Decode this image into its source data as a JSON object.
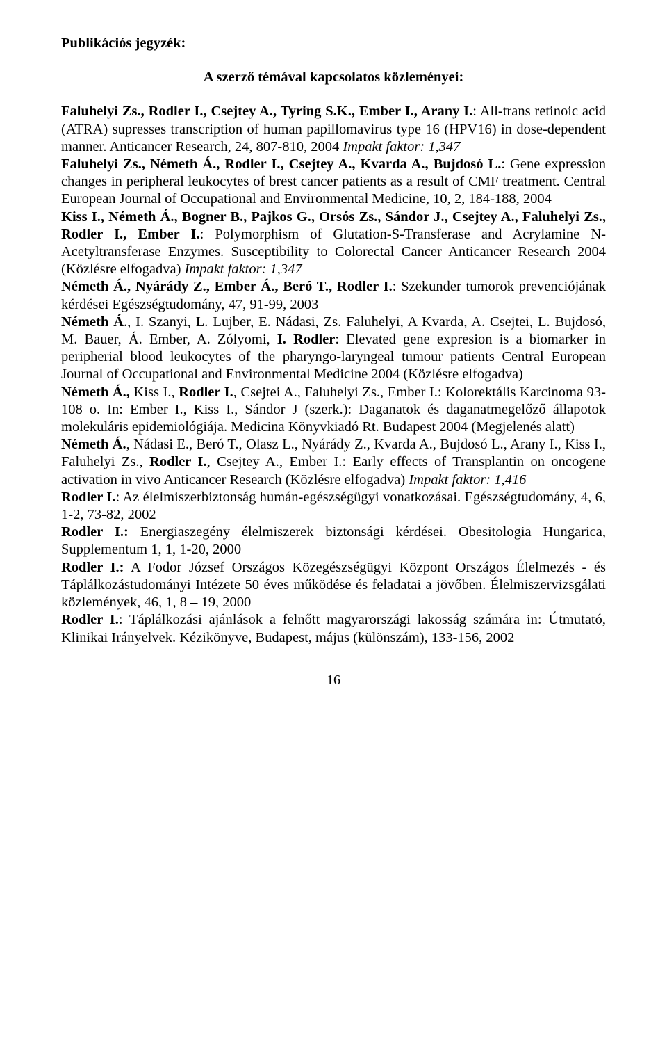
{
  "heading": "Publikációs jegyzék:",
  "subheading": "A szerző témával kapcsolatos közleményei:",
  "text": {
    "t1": "Faluhelyi Zs., Rodler I., Csejtey A., Tyring S.K., Ember I., Arany I.",
    "t2": ": All-trans retinoic acid (ATRA) supresses transcription of human papillomavirus type 16 (HPV16) in dose-dependent manner. Anticancer Research, 24, 807-810, 2004 ",
    "t3": "Impakt faktor: 1,347",
    "t4": "Faluhelyi Zs., Németh Á., Rodler I., Csejtey A., Kvarda A., Bujdosó L.",
    "t5": ": Gene expression changes in peripheral leukocytes of brest cancer patients as a result of CMF treatment. Central European Journal of Occupational and Environmental Medicine, 10, 2, 184-188, 2004",
    "t6": "Kiss I., Németh Á., Bogner B., Pajkos G., Orsós Zs., Sándor J., Csejtey A., Faluhelyi Zs., Rodler I., Ember I.",
    "t7": ": Polymorphism of Glutation-S-Transferase and Acrylamine N-Acetyltransferase Enzymes. Susceptibility to Colorectal Cancer Anticancer Research 2004 (Közlésre elfogadva) ",
    "t8": "Impakt faktor: 1,347",
    "t9": "Németh Á., Nyárády Z., Ember Á., Beró T., Rodler I.",
    "t10": ": Szekunder tumorok prevenciójának kérdései Egészségtudomány, 47, 91-99, 2003",
    "t11": "Németh Á",
    "t12": "., I. Szanyi, L. Lujber, E. Nádasi, Zs. Faluhelyi, A Kvarda, A. Csejtei, L. Bujdosó, M. Bauer, Á. Ember, A. Zólyomi, ",
    "t13": "I. Rodler",
    "t14": ": Elevated gene expresion is a biomarker in peripherial blood leukocytes of the pharyngo-laryngeal tumour patients Central European Journal of Occupational and Environmental Medicine 2004 (Közlésre elfogadva)",
    "t15": "Németh Á., ",
    "t16": "Kiss I., ",
    "t17": "Rodler I.",
    "t18": ", Csejtei A., Faluhelyi Zs., Ember I.: Kolorektális Karcinoma 93-108 o. In: Ember I., Kiss I., Sándor J (szerk.): Daganatok és daganatmegelőző állapotok molekuláris epidemiológiája. Medicina Könyvkiadó Rt. Budapest 2004 (Megjelenés alatt)",
    "t19": "Németh Á.",
    "t20": ", Nádasi E., Beró T., Olasz L., Nyárády Z., Kvarda A., Bujdosó L., Arany I., Kiss I., Faluhelyi Zs., ",
    "t21": "Rodler I.",
    "t22": ", Csejtey A., Ember I.: Early effects of Transplantin on oncogene activation in vivo Anticancer Research (Közlésre elfogadva) ",
    "t23": "Impakt faktor: 1,416",
    "t24": "Rodler I.",
    "t25": ": Az élelmiszerbiztonság humán-egészségügyi vonatkozásai. Egészségtudomány, 4, 6, 1-2, 73-82, 2002",
    "t26": "Rodler I.:",
    "t27": " Energiaszegény élelmiszerek biztonsági kérdései. Obesitologia Hungarica, Supplementum 1, 1, 1-20, 2000",
    "t28": "Rodler I.:",
    "t29": " A Fodor József Országos Közegészségügyi Központ Országos Élelmezés - és Táplálkozástudományi Intézete 50 éves működése és feladatai a jövőben",
    "t30": ". Élelmiszervizsgálati közlemények, 46, 1, 8 – 19, 2000",
    "t31": "Rodler I.",
    "t32": ": Táplálkozási ajánlások a felnőtt magyarországi lakosság számára in: Útmutató, Klinikai Irányelvek. Kézikönyve, Budapest, május (különszám), 133-156, 2002"
  },
  "pageNumber": "16",
  "colors": {
    "text": "#000000",
    "background": "#ffffff"
  },
  "font": {
    "family": "Times New Roman",
    "size_pt": 15,
    "line_height": 1.23
  }
}
